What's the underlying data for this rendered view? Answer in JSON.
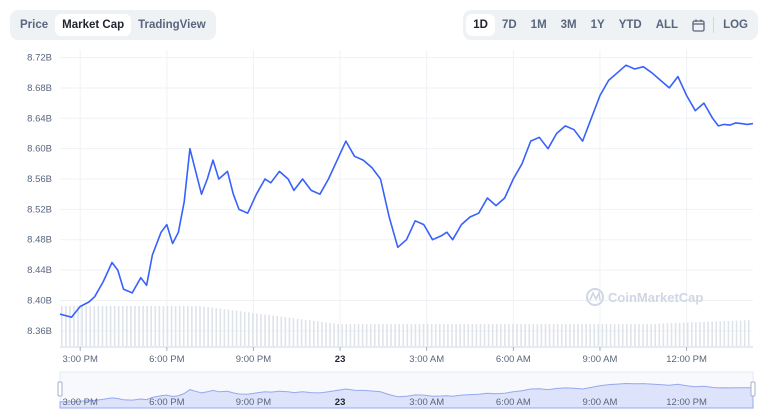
{
  "tabs": [
    {
      "label": "Price",
      "active": false
    },
    {
      "label": "Market Cap",
      "active": true
    },
    {
      "label": "TradingView",
      "active": false
    }
  ],
  "ranges": [
    {
      "label": "1D",
      "active": true
    },
    {
      "label": "7D",
      "active": false
    },
    {
      "label": "1M",
      "active": false
    },
    {
      "label": "3M",
      "active": false
    },
    {
      "label": "1Y",
      "active": false
    },
    {
      "label": "YTD",
      "active": false
    },
    {
      "label": "ALL",
      "active": false
    }
  ],
  "log_label": "LOG",
  "calendar_icon": "calendar-icon",
  "watermark": "CoinMarketCap",
  "colors": {
    "line": "#3861fb",
    "volume": "#dfe3ea",
    "grid": "#eff2f5",
    "navigator_fill": "#dde3fb"
  },
  "chart_data": {
    "type": "line",
    "title": "",
    "xlabel": "",
    "ylabel": "",
    "y_ticks": [
      "8.72B",
      "8.68B",
      "8.64B",
      "8.60B",
      "8.56B",
      "8.52B",
      "8.48B",
      "8.44B",
      "8.40B",
      "8.36B"
    ],
    "ylim": [
      8.34,
      8.73
    ],
    "x_ticks": [
      {
        "label": "3:00 PM",
        "t": 0.7
      },
      {
        "label": "6:00 PM",
        "t": 3.7
      },
      {
        "label": "9:00 PM",
        "t": 6.7
      },
      {
        "label": "23",
        "t": 9.7,
        "bold": true
      },
      {
        "label": "3:00 AM",
        "t": 12.7
      },
      {
        "label": "6:00 AM",
        "t": 15.7
      },
      {
        "label": "9:00 AM",
        "t": 18.7
      },
      {
        "label": "12:00 PM",
        "t": 21.7
      }
    ],
    "xlim": [
      0,
      24
    ],
    "unit": "B",
    "grid": true,
    "series": [
      {
        "t": [
          0,
          0.4,
          0.7,
          1.0,
          1.2,
          1.5,
          1.8,
          2.0,
          2.2,
          2.5,
          2.8,
          3.0,
          3.2,
          3.5,
          3.7,
          3.9,
          4.1,
          4.3,
          4.5,
          4.7,
          4.9,
          5.1,
          5.3,
          5.5,
          5.8,
          6.0,
          6.2,
          6.5,
          6.8,
          7.1,
          7.3,
          7.6,
          7.9,
          8.1,
          8.4,
          8.7,
          9.0,
          9.3,
          9.6,
          9.9,
          10.2,
          10.5,
          10.8,
          11.1,
          11.4,
          11.7,
          12.0,
          12.3,
          12.6,
          12.9,
          13.2,
          13.4,
          13.6,
          13.9,
          14.2,
          14.5,
          14.8,
          15.1,
          15.4,
          15.7,
          16.0,
          16.3,
          16.6,
          16.9,
          17.2,
          17.5,
          17.8,
          18.1,
          18.4,
          18.7,
          19.0,
          19.3,
          19.6,
          19.9,
          20.2,
          20.5,
          20.8,
          21.1,
          21.4,
          21.7,
          22.0,
          22.3,
          22.6,
          22.8,
          23.0,
          23.2,
          23.4,
          23.6,
          23.8,
          24.0
        ],
        "values": [
          8.382,
          8.378,
          8.392,
          8.398,
          8.405,
          8.425,
          8.45,
          8.44,
          8.415,
          8.41,
          8.43,
          8.42,
          8.46,
          8.49,
          8.5,
          8.475,
          8.49,
          8.53,
          8.6,
          8.57,
          8.54,
          8.56,
          8.585,
          8.56,
          8.57,
          8.54,
          8.52,
          8.515,
          8.54,
          8.56,
          8.555,
          8.57,
          8.56,
          8.545,
          8.56,
          8.545,
          8.54,
          8.56,
          8.585,
          8.61,
          8.59,
          8.585,
          8.575,
          8.56,
          8.51,
          8.47,
          8.48,
          8.505,
          8.5,
          8.48,
          8.485,
          8.49,
          8.48,
          8.5,
          8.51,
          8.515,
          8.535,
          8.525,
          8.535,
          8.56,
          8.58,
          8.61,
          8.615,
          8.6,
          8.62,
          8.63,
          8.625,
          8.61,
          8.64,
          8.67,
          8.69,
          8.7,
          8.71,
          8.705,
          8.708,
          8.7,
          8.69,
          8.68,
          8.695,
          8.67,
          8.65,
          8.66,
          8.64,
          8.63,
          8.632,
          8.631,
          8.634,
          8.633,
          8.632,
          8.633
        ]
      }
    ],
    "navigator": {
      "x_ticks": [
        "3:00 PM",
        "6:00 PM",
        "9:00 PM",
        "23",
        "3:00 AM",
        "6:00 AM",
        "9:00 AM",
        "12:00 PM"
      ]
    }
  }
}
